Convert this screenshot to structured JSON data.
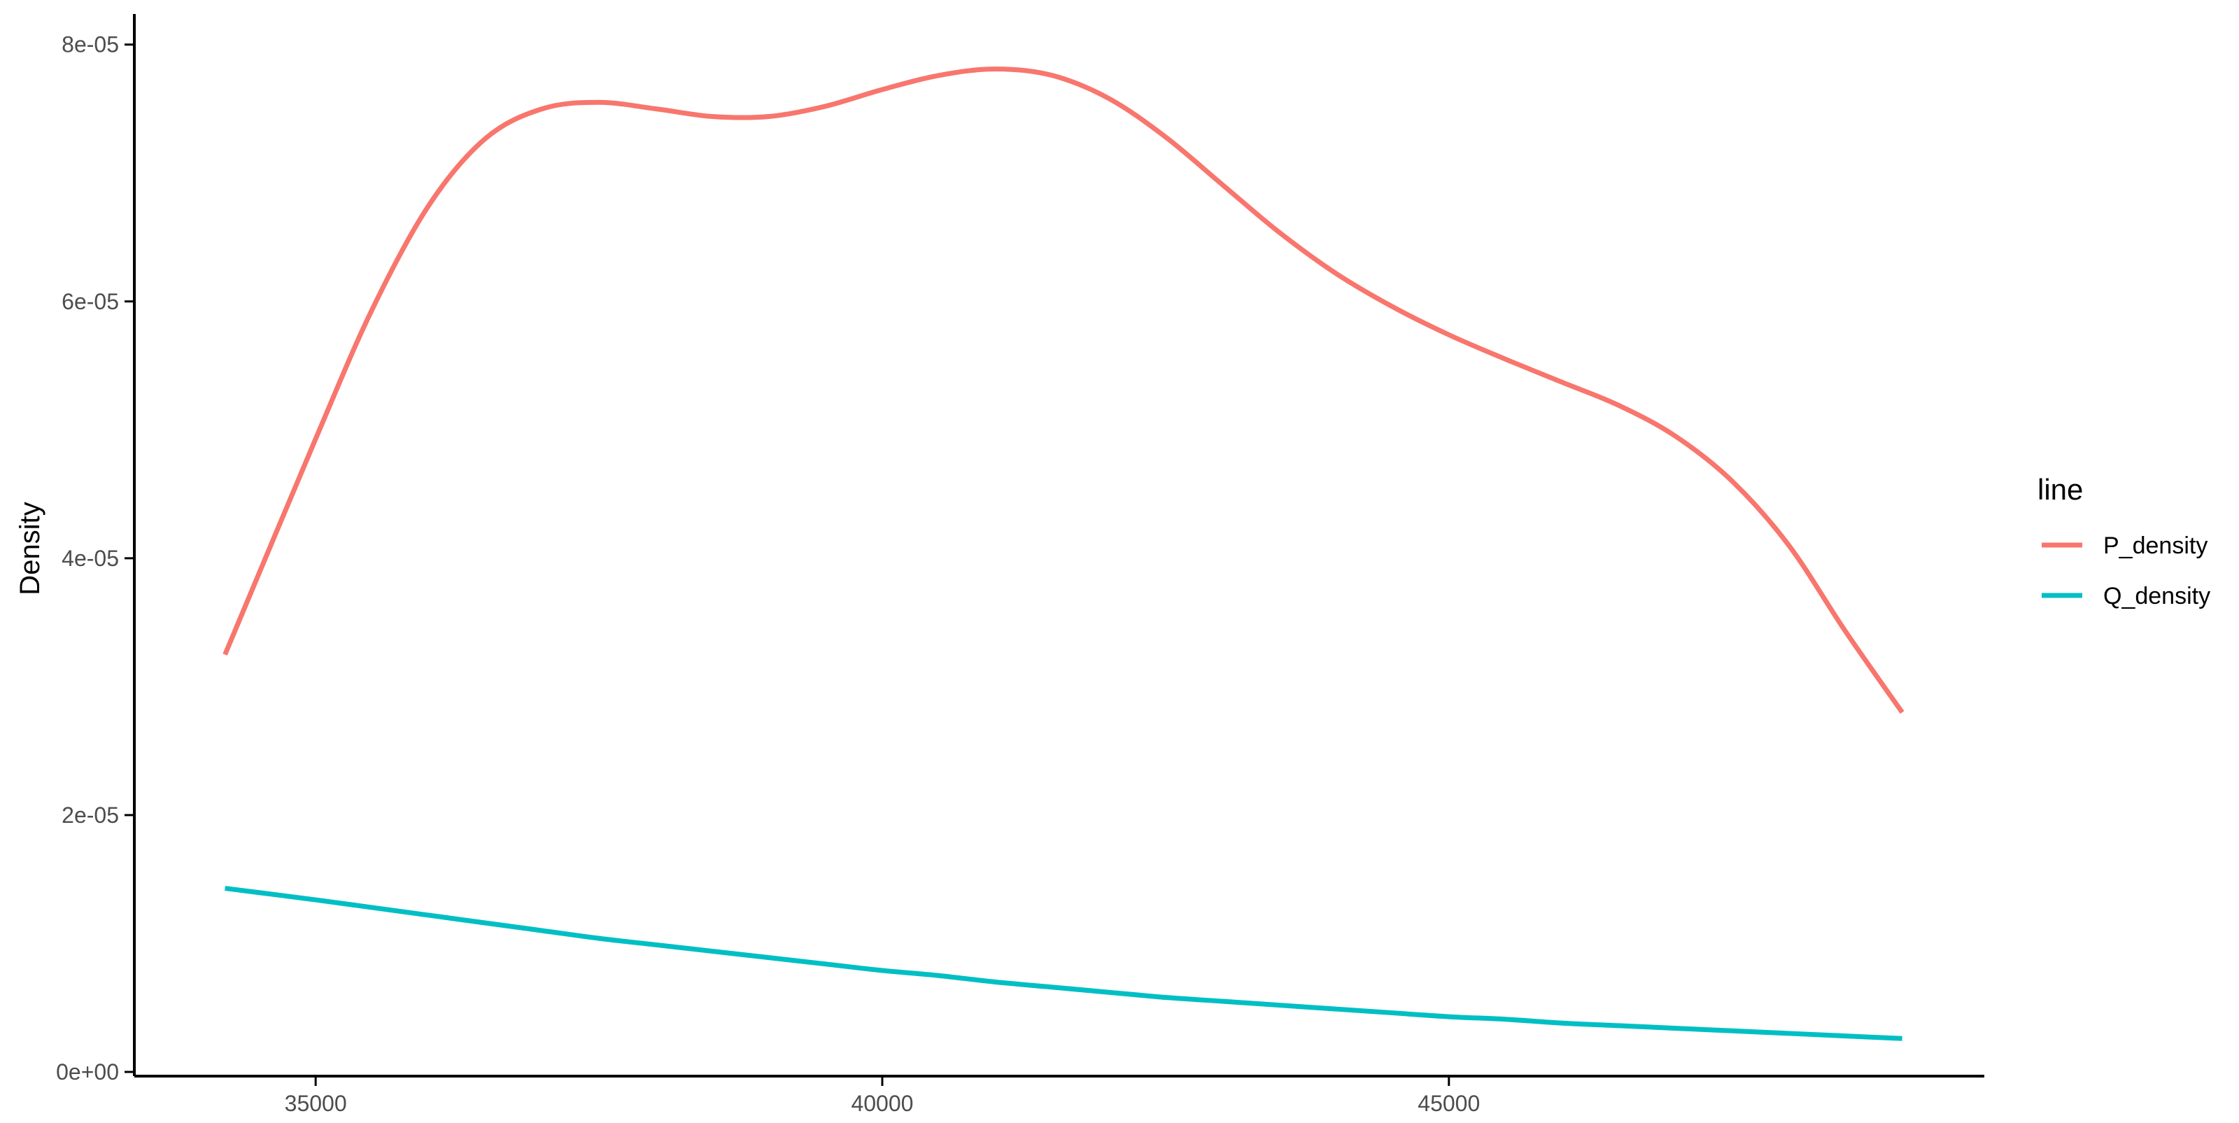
{
  "chart_data": {
    "type": "line",
    "title": "",
    "xlabel": "",
    "ylabel": "Density",
    "xlim": [
      33400,
      49700
    ],
    "ylim": [
      0,
      8.2e-05
    ],
    "x_ticks": [
      35000,
      40000,
      45000
    ],
    "x_tick_labels": [
      "35000",
      "40000",
      "45000"
    ],
    "y_ticks": [
      0,
      2e-05,
      4e-05,
      6e-05,
      8e-05
    ],
    "y_tick_labels": [
      "0e+00",
      "2e-05",
      "4e-05",
      "6e-05",
      "8e-05"
    ],
    "grid": false,
    "legend": {
      "title": "line",
      "position": "right"
    },
    "x": [
      34200,
      35000,
      35500,
      36000,
      36500,
      37000,
      37500,
      38000,
      38500,
      39000,
      39500,
      40000,
      40500,
      41000,
      41500,
      42000,
      42500,
      43000,
      43500,
      44000,
      44500,
      45000,
      45500,
      46000,
      46500,
      47000,
      47500,
      48000,
      48500,
      49000
    ],
    "series": [
      {
        "name": "P_density",
        "color": "#F8766D",
        "values": [
          3.25e-05,
          4.93e-05,
          5.94e-05,
          6.75e-05,
          7.27e-05,
          7.5e-05,
          7.55e-05,
          7.5e-05,
          7.44e-05,
          7.44e-05,
          7.52e-05,
          7.65e-05,
          7.76e-05,
          7.81e-05,
          7.76e-05,
          7.58e-05,
          7.28e-05,
          6.91e-05,
          6.54e-05,
          6.22e-05,
          5.96e-05,
          5.74e-05,
          5.55e-05,
          5.37e-05,
          5.19e-05,
          4.95e-05,
          4.6e-05,
          4.1e-05,
          3.43e-05,
          2.8e-05
        ]
      },
      {
        "name": "Q_density",
        "color": "#00BFC4",
        "values": [
          1.43e-05,
          1.34e-05,
          1.28e-05,
          1.22e-05,
          1.16e-05,
          1.1e-05,
          1.04e-05,
          9.9e-06,
          9.4e-06,
          8.9e-06,
          8.4e-06,
          7.9e-06,
          7.5e-06,
          7e-06,
          6.6e-06,
          6.2e-06,
          5.8e-06,
          5.5e-06,
          5.2e-06,
          4.9e-06,
          4.6e-06,
          4.3e-06,
          4.1e-06,
          3.8e-06,
          3.6e-06,
          3.4e-06,
          3.2e-06,
          3e-06,
          2.8e-06,
          2.6e-06
        ]
      }
    ]
  }
}
